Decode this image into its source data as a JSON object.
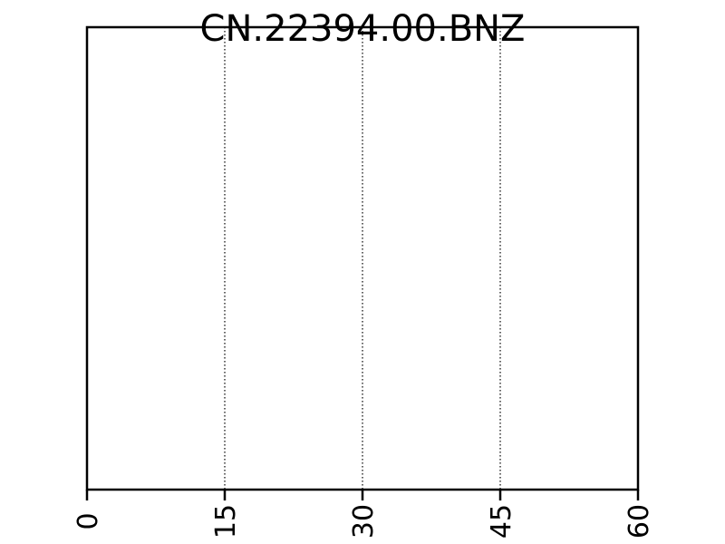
{
  "chart_data": {
    "type": "line",
    "title": "CN.22394.00.BNZ",
    "xlabel": "",
    "ylabel": "",
    "xlim": [
      0,
      60
    ],
    "xticks": [
      0,
      15,
      30,
      45,
      60
    ],
    "xtick_labels": [
      "0",
      "15",
      "30",
      "45",
      "60"
    ],
    "grid": "vertical-dotted",
    "series": [],
    "colors": {
      "frame": "#000000",
      "grid": "#000000",
      "background": "#ffffff"
    }
  }
}
